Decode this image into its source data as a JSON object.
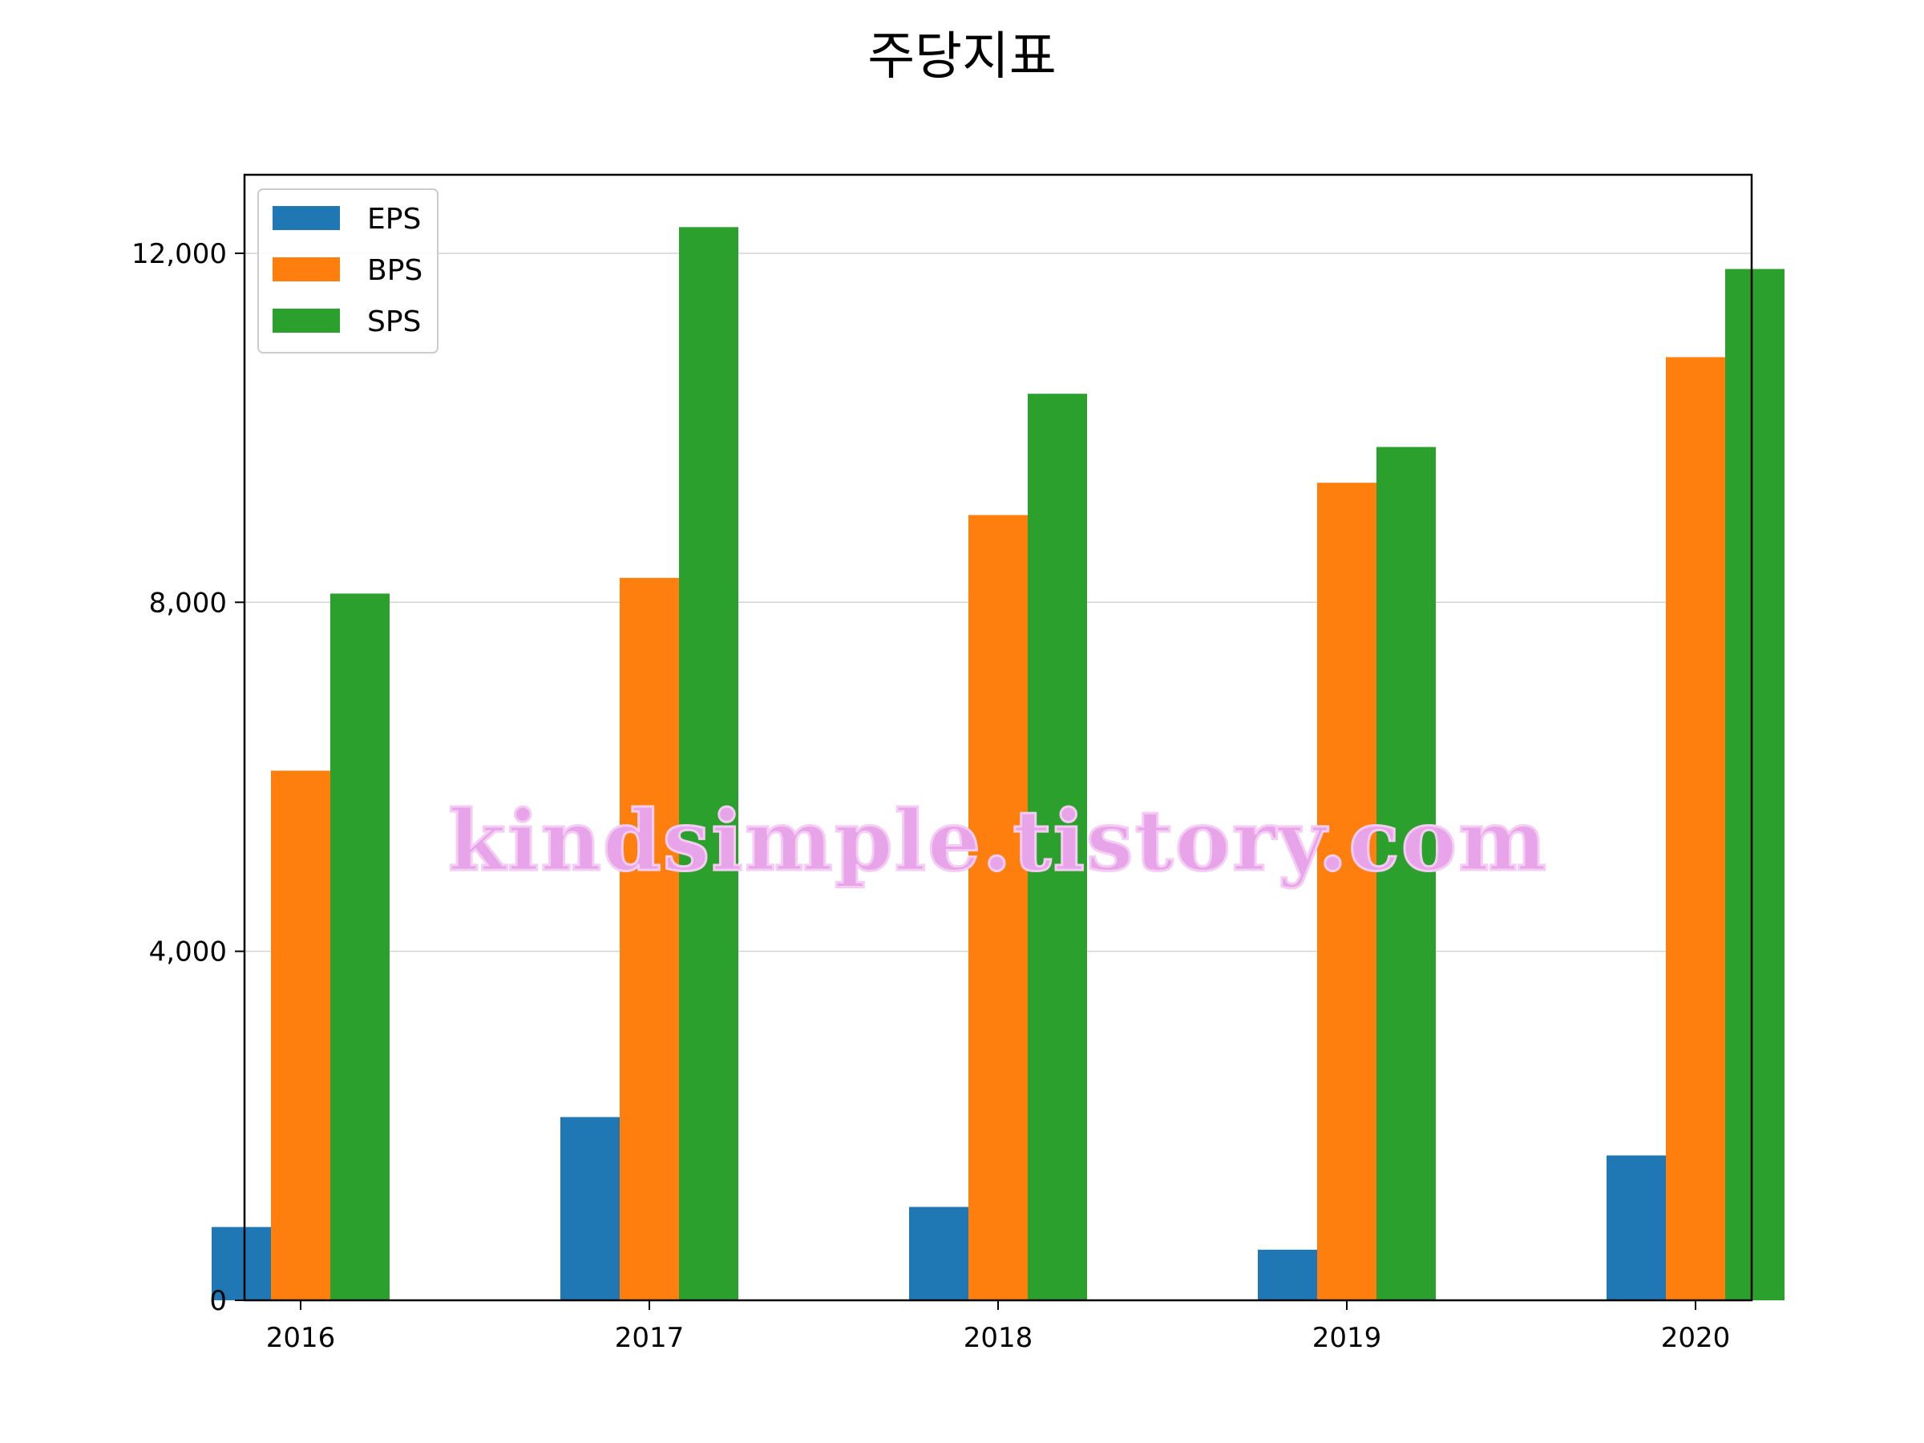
{
  "chart_data": {
    "type": "bar",
    "title": "주당지표",
    "xlabel": "",
    "ylabel": "",
    "categories": [
      "2016",
      "2017",
      "2018",
      "2019",
      "2020"
    ],
    "series": [
      {
        "name": "EPS",
        "color": "#1f77b4",
        "values": [
          840,
          2100,
          1070,
          580,
          1660
        ]
      },
      {
        "name": "BPS",
        "color": "#ff7f0e",
        "values": [
          6070,
          8280,
          9000,
          9370,
          10810
        ]
      },
      {
        "name": "SPS",
        "color": "#2ca02c",
        "values": [
          8100,
          12300,
          10390,
          9780,
          11820
        ]
      }
    ],
    "ylim": [
      0,
      12900
    ],
    "yticks": [
      0,
      4000,
      8000,
      12000
    ],
    "ytick_labels": [
      "0",
      "4,000",
      "8,000",
      "12,000"
    ],
    "grid": "y",
    "legend_position": "top-left"
  },
  "watermark": {
    "text": "kindsimple.tistory.com",
    "color": "#e8a4e8"
  }
}
